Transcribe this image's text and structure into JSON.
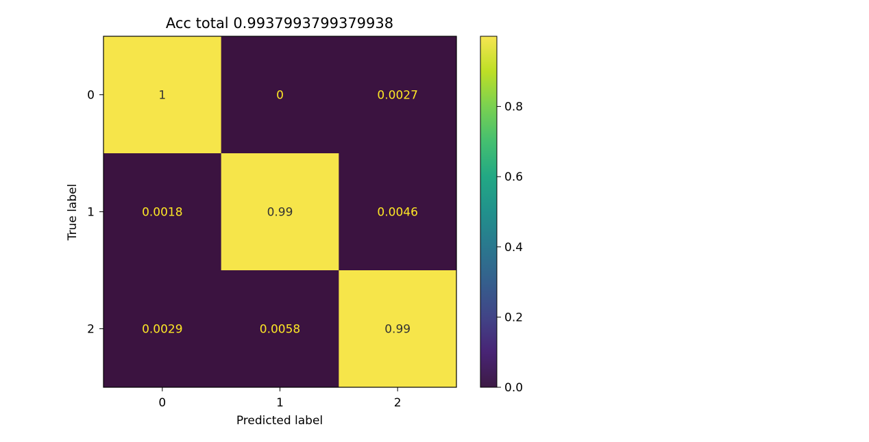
{
  "chart_data": {
    "type": "heatmap",
    "title": "Acc total 0.9937993799379938",
    "xlabel": "Predicted label",
    "ylabel": "True label",
    "x_categories": [
      "0",
      "1",
      "2"
    ],
    "y_categories": [
      "0",
      "1",
      "2"
    ],
    "values": [
      [
        1.0,
        0.0,
        0.0027
      ],
      [
        0.0018,
        0.99,
        0.0046
      ],
      [
        0.0029,
        0.0058,
        0.99
      ]
    ],
    "cell_labels": [
      [
        "1",
        "0",
        "0.0027"
      ],
      [
        "0.0018",
        "0.99",
        "0.0046"
      ],
      [
        "0.0029",
        "0.0058",
        "0.99"
      ]
    ],
    "colormap": "viridis",
    "colors": {
      "low": "#440154",
      "high": "#fde725",
      "low_text": "#fde725",
      "high_text": "#333333"
    },
    "colorbar": {
      "vmin": 0.0,
      "vmax": 1.0,
      "ticks": [
        0.0,
        0.2,
        0.4,
        0.6,
        0.8
      ],
      "tick_labels": [
        "0.0",
        "0.2",
        "0.4",
        "0.6",
        "0.8"
      ]
    },
    "grid": false
  }
}
